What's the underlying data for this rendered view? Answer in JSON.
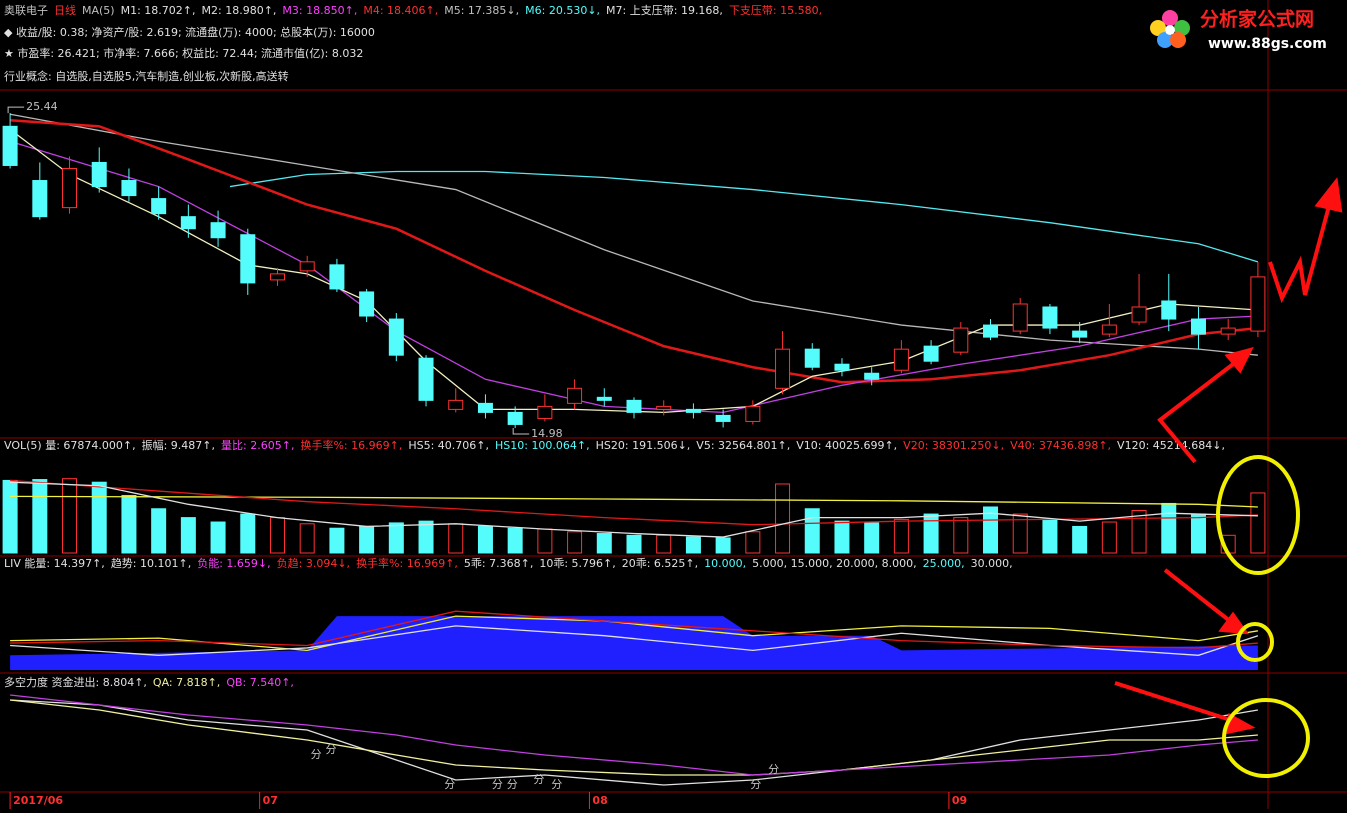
{
  "logo": {
    "name": "分析家公式网",
    "url": "www.88gs.com"
  },
  "chart_data": [
    {
      "type": "candlestick",
      "header": [
        [
          {
            "text": "奥联电子",
            "color": "#c0c0c0"
          },
          {
            "text": "日线",
            "color": "#ff3030"
          },
          {
            "text": "MA(5)",
            "color": "#c0c0c0"
          },
          {
            "text": "M1: 18.702↑,",
            "color": "#e0e0e0"
          },
          {
            "text": "M2: 18.980↑,",
            "color": "#e0e0e0"
          },
          {
            "text": "M3: 18.850↑,",
            "color": "#ff40ff"
          },
          {
            "text": "M4: 18.406↑,",
            "color": "#ff3030"
          },
          {
            "text": "M5: 17.385↓,",
            "color": "#c0c0c0"
          },
          {
            "text": "M6: 20.530↓,",
            "color": "#54fcfc"
          },
          {
            "text": "M7: 上支压带: 19.168,",
            "color": "#e0e0e0"
          },
          {
            "text": "下支压带: 15.580,",
            "color": "#ff3030"
          }
        ],
        [
          {
            "text": "◆ 收益/股: 0.38; 净资产/股: 2.619; 流通盘(万): 4000; 总股本(万): 16000",
            "color": "#e0e0e0"
          }
        ],
        [
          {
            "text": "★ 市盈率: 26.421;  市净率: 7.666;  权益比: 72.44;  流通市值(亿): 8.032",
            "color": "#e0e0e0"
          }
        ],
        [
          {
            "text": "行业概念: 自选股,自选股5,汽车制造,创业板,次新股,高送转",
            "color": "#e0e0e0"
          }
        ]
      ],
      "xlim": [
        -0.34,
        42.34
      ],
      "ylim": [
        14.65,
        26.04
      ],
      "open": [
        25.0,
        23.2,
        22.3,
        23.8,
        23.2,
        22.6,
        22.0,
        21.8,
        21.4,
        19.9,
        20.2,
        20.4,
        19.5,
        18.6,
        17.3,
        15.6,
        15.8,
        15.5,
        15.3,
        15.8,
        16.0,
        15.9,
        15.6,
        15.6,
        15.4,
        15.2,
        16.3,
        17.6,
        17.1,
        16.8,
        16.9,
        17.7,
        17.5,
        18.4,
        18.2,
        19.0,
        18.2,
        18.1,
        18.5,
        19.2,
        18.6,
        18.1,
        18.2
      ],
      "high": [
        25.44,
        23.8,
        24.0,
        24.3,
        23.6,
        23.0,
        22.4,
        22.2,
        21.6,
        20.3,
        20.7,
        20.6,
        19.6,
        18.8,
        17.4,
        16.3,
        16.1,
        15.7,
        16.1,
        16.6,
        16.3,
        16.0,
        15.9,
        15.8,
        15.6,
        15.9,
        18.2,
        17.8,
        17.3,
        17.0,
        17.9,
        17.9,
        18.5,
        18.6,
        19.3,
        19.1,
        18.5,
        19.1,
        20.1,
        20.1,
        19.0,
        18.6,
        20.5
      ],
      "low": [
        23.6,
        21.9,
        22.1,
        22.8,
        22.5,
        21.9,
        21.3,
        21.0,
        19.4,
        19.7,
        20.0,
        19.5,
        18.5,
        17.2,
        15.7,
        15.5,
        15.3,
        14.98,
        15.2,
        15.6,
        15.7,
        15.3,
        15.4,
        15.3,
        15.0,
        15.1,
        16.1,
        16.9,
        16.7,
        16.4,
        16.8,
        17.1,
        17.4,
        17.9,
        18.1,
        18.1,
        17.8,
        18.0,
        18.4,
        18.2,
        17.6,
        17.9,
        18.0
      ],
      "close": [
        23.7,
        22.0,
        23.6,
        23.0,
        22.7,
        22.1,
        21.6,
        21.3,
        19.8,
        20.1,
        20.5,
        19.6,
        18.7,
        17.4,
        15.9,
        15.9,
        15.5,
        15.1,
        15.7,
        16.3,
        15.9,
        15.5,
        15.7,
        15.5,
        15.2,
        15.7,
        17.6,
        17.0,
        16.9,
        16.6,
        17.6,
        17.2,
        18.3,
        18.0,
        19.1,
        18.3,
        18.0,
        18.4,
        19.0,
        18.6,
        18.1,
        18.3,
        20.0
      ],
      "up_color": "#ff3232",
      "down_color": "#54fcfc",
      "series": [
        {
          "color": "#54e8f0",
          "x": [
            7.4,
            10,
            13,
            16,
            20,
            25,
            30,
            35,
            40,
            42
          ],
          "values": [
            23.0,
            23.4,
            23.5,
            23.5,
            23.3,
            22.9,
            22.4,
            21.8,
            21.1,
            20.5
          ]
        },
        {
          "color": "#b8b8b8",
          "x": [
            0,
            5,
            10,
            15,
            20,
            25,
            30,
            35,
            40,
            42
          ],
          "values": [
            25.4,
            24.5,
            23.7,
            22.9,
            20.9,
            19.2,
            18.4,
            17.9,
            17.6,
            17.4
          ]
        },
        {
          "color": "#e01818",
          "x": [
            0,
            3,
            6,
            10,
            13,
            16,
            19,
            22,
            25,
            28,
            31,
            34,
            37,
            40,
            42
          ],
          "values": [
            25.2,
            25.0,
            23.9,
            22.4,
            21.6,
            20.2,
            18.9,
            17.7,
            17.0,
            16.5,
            16.6,
            16.9,
            17.4,
            18.1,
            18.3
          ]
        },
        {
          "color": "#c040e0",
          "x": [
            0,
            5,
            10,
            13,
            16,
            20,
            24,
            28,
            32,
            36,
            40,
            42
          ],
          "values": [
            24.5,
            23.0,
            20.4,
            18.2,
            16.6,
            15.7,
            15.5,
            16.4,
            17.1,
            17.7,
            18.6,
            18.7
          ]
        },
        {
          "color": "#f0f0c0",
          "x": [
            0,
            2,
            5,
            8,
            10,
            12,
            14,
            16,
            19,
            22,
            25,
            27,
            30,
            33,
            36,
            39,
            42
          ],
          "values": [
            24.9,
            23.4,
            22.0,
            20.4,
            20.1,
            19.2,
            17.2,
            15.6,
            15.6,
            15.5,
            15.7,
            16.7,
            17.2,
            18.4,
            18.4,
            19.1,
            18.9
          ]
        }
      ],
      "annotations": [
        {
          "text": "25.44",
          "x": 0,
          "y": 25.44
        },
        {
          "text": "14.98",
          "x": 17,
          "y": 14.98
        }
      ]
    },
    {
      "type": "bar",
      "header": [
        [
          {
            "text": "VOL(5) 量: 67874.000↑,",
            "color": "#e0e0e0"
          },
          {
            "text": "振幅: 9.487↑,",
            "color": "#e0e0e0"
          },
          {
            "text": "量比: 2.605↑,",
            "color": "#ff40ff"
          },
          {
            "text": "换手率%: 16.969↑,",
            "color": "#ff3030"
          },
          {
            "text": "HS5: 40.706↑,",
            "color": "#e0e0e0"
          },
          {
            "text": "HS10: 100.064↑,",
            "color": "#54fcfc"
          },
          {
            "text": "HS20: 191.506↓,",
            "color": "#e0e0e0"
          },
          {
            "text": "V5: 32564.801↑,",
            "color": "#e0e0e0"
          },
          {
            "text": "V10: 40025.699↑,",
            "color": "#e0e0e0"
          },
          {
            "text": "V20: 38301.250↓,",
            "color": "#ff3030"
          },
          {
            "text": "V40: 37436.898↑,",
            "color": "#ff3030"
          },
          {
            "text": "V120: 45214.684↓,",
            "color": "#e0e0e0"
          }
        ]
      ],
      "xlim": [
        -0.34,
        42.34
      ],
      "ylim": [
        0,
        113000
      ],
      "values": [
        82000,
        83000,
        84000,
        80000,
        65000,
        50000,
        40000,
        35000,
        44000,
        40000,
        33000,
        28000,
        30000,
        34000,
        36000,
        33000,
        30000,
        28000,
        27000,
        24000,
        22000,
        20000,
        20000,
        18000,
        17000,
        24000,
        78000,
        50000,
        36000,
        34000,
        38000,
        44000,
        40000,
        52000,
        44000,
        38000,
        30000,
        35000,
        48000,
        56000,
        44000,
        20000,
        67874
      ],
      "series": [
        {
          "color": "#f0f040",
          "x": [
            0,
            10,
            20,
            30,
            40,
            42
          ],
          "values": [
            64000,
            63000,
            61000,
            59000,
            55000,
            52000
          ]
        },
        {
          "color": "#e01818",
          "x": [
            0,
            5,
            10,
            15,
            20,
            25,
            30,
            35,
            40,
            42
          ],
          "values": [
            82000,
            70000,
            58000,
            50000,
            40000,
            32000,
            36000,
            38000,
            40000,
            43000
          ]
        },
        {
          "color": "#e0e0e0",
          "x": [
            0,
            3,
            6,
            9,
            12,
            15,
            18,
            21,
            24,
            27,
            30,
            33,
            36,
            39,
            42
          ],
          "values": [
            80000,
            76000,
            55000,
            40000,
            30000,
            33000,
            27000,
            22000,
            18000,
            40000,
            40000,
            45000,
            36000,
            45000,
            42000
          ]
        }
      ]
    },
    {
      "type": "area",
      "header": [
        [
          {
            "text": "LIV 能量: 14.397↑,",
            "color": "#e0e0e0"
          },
          {
            "text": "趋势: 10.101↑,",
            "color": "#e0e0e0"
          },
          {
            "text": "负能: 1.659↓,",
            "color": "#ff40ff"
          },
          {
            "text": "负趋: 3.094↓,",
            "color": "#ff3030"
          },
          {
            "text": "换手率%: 16.969↑,",
            "color": "#ff3030"
          },
          {
            "text": "5乖: 7.368↑,",
            "color": "#e0e0e0"
          },
          {
            "text": "10乖: 5.796↑,",
            "color": "#e0e0e0"
          },
          {
            "text": "20乖: 6.525↑,",
            "color": "#e0e0e0"
          },
          {
            "text": "10.000,",
            "color": "#54fcfc"
          },
          {
            "text": "5.000, 15.000, 20.000, 8.000,",
            "color": "#e0e0e0"
          },
          {
            "text": "25.000,",
            "color": "#54fcfc"
          },
          {
            "text": "30.000,",
            "color": "#e0e0e0"
          }
        ]
      ],
      "xlim": [
        -0.34,
        42.34
      ],
      "ylim": [
        0,
        40
      ],
      "area": {
        "color": "#2020ff",
        "x": [
          0,
          10,
          11,
          24,
          25,
          29,
          30,
          42
        ],
        "values": [
          6,
          8,
          22,
          22,
          14,
          14,
          8,
          10
        ]
      },
      "series": [
        {
          "color": "#f0f040",
          "x": [
            0,
            5,
            10,
            15,
            20,
            25,
            30,
            35,
            40,
            42
          ],
          "values": [
            12,
            13,
            8,
            22,
            20,
            14,
            18,
            17,
            12,
            16
          ]
        },
        {
          "color": "#e0e0e0",
          "x": [
            0,
            5,
            10,
            15,
            20,
            25,
            30,
            35,
            40,
            42
          ],
          "values": [
            10,
            6,
            9,
            18,
            14,
            8,
            15,
            10,
            6,
            14
          ]
        },
        {
          "color": "#e01818",
          "x": [
            0,
            5,
            10,
            15,
            20,
            25,
            30,
            35,
            40,
            42
          ],
          "values": [
            11,
            12,
            10,
            24,
            20,
            16,
            12,
            10,
            9,
            11
          ]
        }
      ]
    },
    {
      "type": "line",
      "header": [
        [
          {
            "text": "多空力度 资金进出: 8.804↑,",
            "color": "#e0e0e0"
          },
          {
            "text": "QA: 7.818↑,",
            "color": "#f0f0a0"
          },
          {
            "text": "QB: 7.540↑,",
            "color": "#ff40ff"
          }
        ]
      ],
      "xlim": [
        -0.34,
        42.34
      ],
      "ylim": [
        0,
        20
      ],
      "xticks": [
        {
          "value": 0,
          "label": "2017/06"
        },
        {
          "value": 8.4,
          "label": "07"
        },
        {
          "value": 19.5,
          "label": "08"
        },
        {
          "value": 31.6,
          "label": "09"
        }
      ],
      "series": [
        {
          "color": "#e0e0e0",
          "x": [
            0,
            3,
            6,
            10,
            13,
            15,
            18,
            22,
            25,
            28,
            31,
            34,
            37,
            40,
            42
          ],
          "values": [
            18,
            17,
            14,
            12,
            6,
            2,
            3,
            1,
            2,
            4,
            6,
            10,
            12,
            14,
            16
          ]
        },
        {
          "color": "#f0f0a0",
          "x": [
            0,
            3,
            6,
            10,
            13,
            15,
            18,
            22,
            25,
            28,
            31,
            34,
            37,
            40,
            42
          ],
          "values": [
            18,
            16,
            13,
            10,
            7,
            5,
            4,
            3,
            3,
            4,
            6,
            8,
            10,
            10,
            11
          ]
        },
        {
          "color": "#c040e0",
          "x": [
            0,
            3,
            6,
            10,
            13,
            15,
            18,
            22,
            25,
            28,
            31,
            34,
            37,
            40,
            42
          ],
          "values": [
            19,
            17,
            15,
            13,
            11,
            9,
            7,
            5,
            3,
            4,
            5,
            6,
            7,
            9,
            10
          ]
        }
      ],
      "annotations": [
        {
          "text": "分",
          "x": 10.3,
          "y": 7
        },
        {
          "text": "分",
          "x": 10.8,
          "y": 8
        },
        {
          "text": "分",
          "x": 14.8,
          "y": 1
        },
        {
          "text": "分",
          "x": 16.4,
          "y": 1
        },
        {
          "text": "分",
          "x": 16.9,
          "y": 1
        },
        {
          "text": "分",
          "x": 17.8,
          "y": 2
        },
        {
          "text": "分",
          "x": 18.4,
          "y": 1
        },
        {
          "text": "分",
          "x": 25.1,
          "y": 1
        },
        {
          "text": "分",
          "x": 25.7,
          "y": 4
        }
      ]
    }
  ]
}
